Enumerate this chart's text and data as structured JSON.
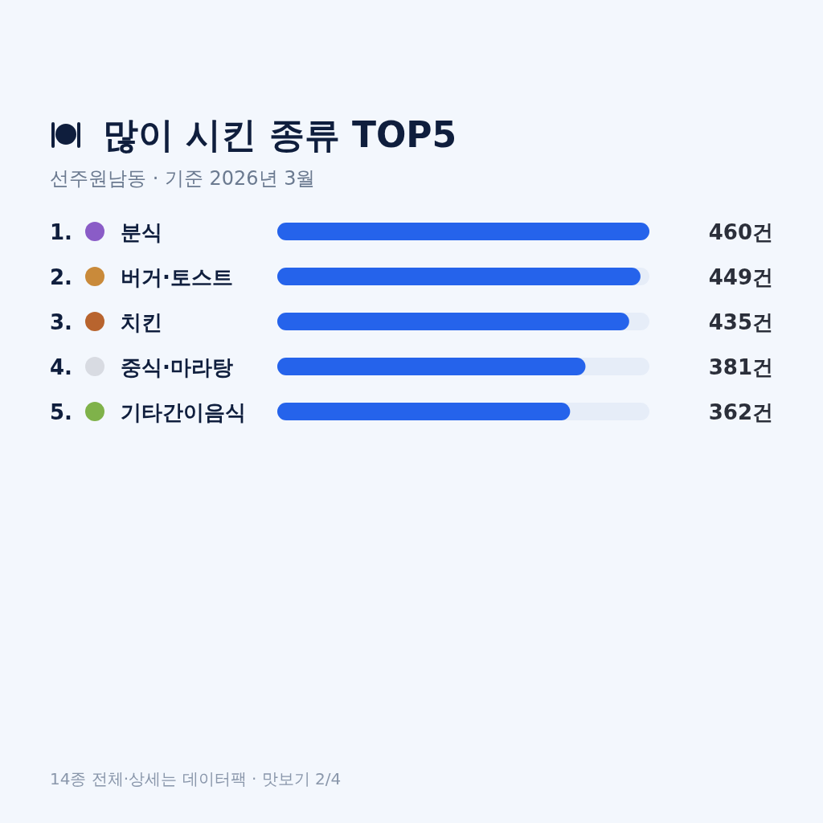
{
  "chart_data": {
    "type": "bar",
    "orientation": "horizontal",
    "title": "많이 시킨 종류 TOP5",
    "subtitle": "선주원남동 · 기준 2026년 3월",
    "categories": [
      "1. 분식",
      "2. 버거·토스트",
      "3. 치킨",
      "4. 중식·마라탕",
      "5. 기타간이음식"
    ],
    "values": [
      460,
      449,
      435,
      381,
      362
    ],
    "value_labels": [
      "460건",
      "449건",
      "435건",
      "381건",
      "362건"
    ],
    "color": "#2563eb",
    "annotations": [
      "14종 전체·상세는 데이터팩 · 맛보기 2/4"
    ]
  }
}
